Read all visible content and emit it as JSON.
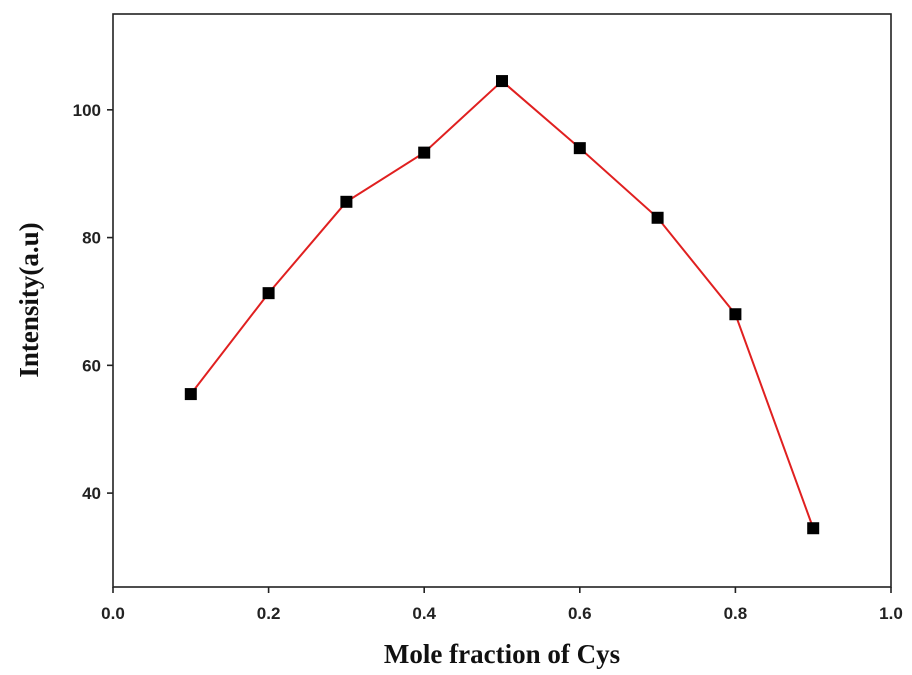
{
  "chart_data": {
    "type": "line",
    "x_label": "Mole fraction of Cys",
    "y_label": "Intensity(a.u)",
    "x": [
      0.1,
      0.2,
      0.3,
      0.4,
      0.5,
      0.6,
      0.7,
      0.8,
      0.9
    ],
    "series": [
      {
        "color": "#e02020",
        "marker_color": "#000000",
        "values": [
          55.5,
          71.3,
          85.6,
          93.3,
          104.5,
          94.0,
          83.1,
          68.0,
          34.5
        ]
      }
    ],
    "xlim": [
      0,
      1
    ],
    "ylim": [
      25.3,
      115
    ],
    "xticks": [
      {
        "value": 0,
        "label": "0.0"
      },
      0.2,
      0.4,
      0.6,
      0.8,
      {
        "value": 1,
        "label": "1.0"
      }
    ],
    "yticks": [
      40,
      60,
      80,
      100
    ]
  }
}
